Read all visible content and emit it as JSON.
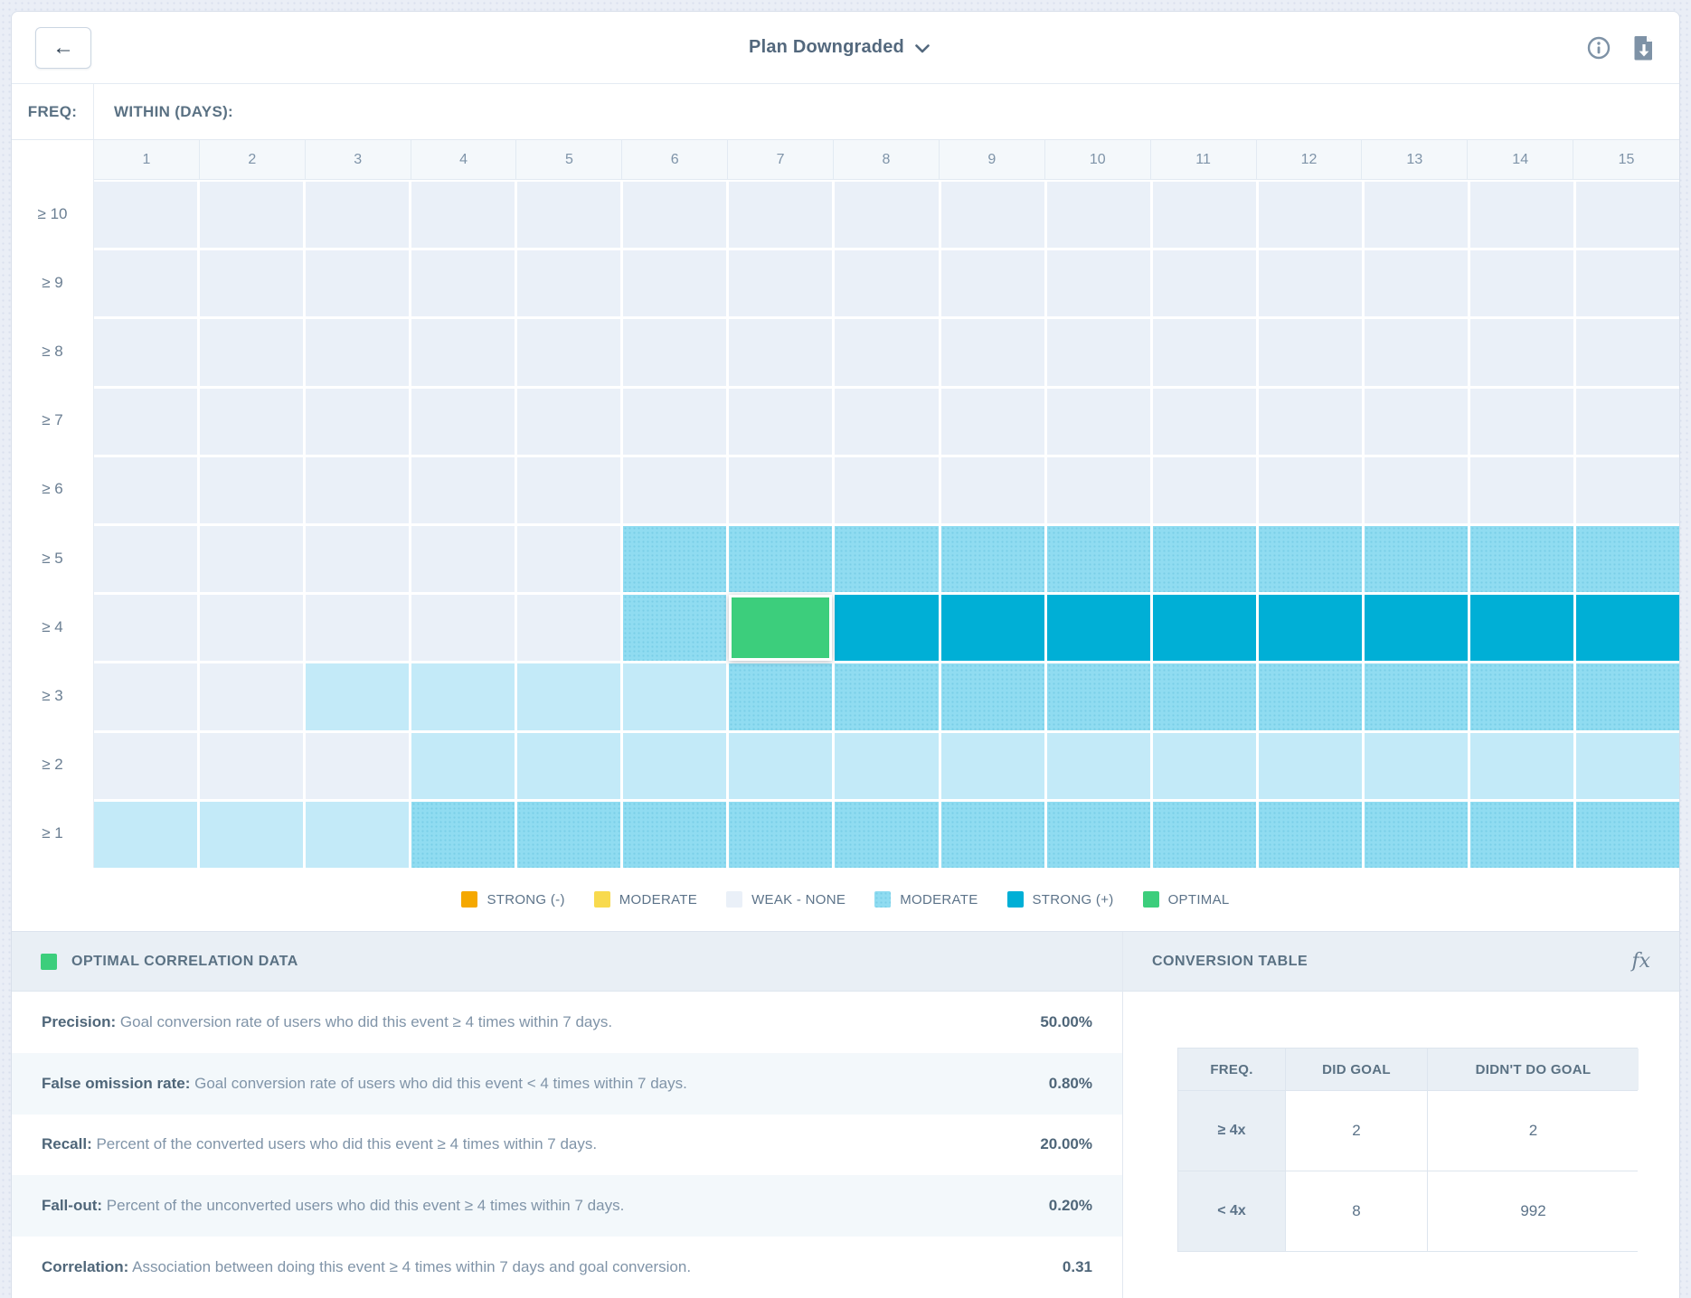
{
  "colors": {
    "strong_neg": "#F5A800",
    "moderate_yellow": "#F8DA4E",
    "weak": "#EAF0F8",
    "light": "#C3EAF8",
    "moderate": "#90DCF1",
    "strong": "#00AFD6",
    "optimal": "#3CCE7C"
  },
  "topbar": {
    "back_label": "←",
    "title": "Plan Downgraded",
    "chevron_icon": "chevron-down",
    "info_icon": "info",
    "download_icon": "download"
  },
  "heatmap": {
    "freq_label": "FREQ:",
    "within_label": "WITHIN (DAYS):",
    "columns": [
      "1",
      "2",
      "3",
      "4",
      "5",
      "6",
      "7",
      "8",
      "9",
      "10",
      "11",
      "12",
      "13",
      "14",
      "15"
    ],
    "rows": [
      {
        "label": "≥ 10",
        "cells": [
          "weak",
          "weak",
          "weak",
          "weak",
          "weak",
          "weak",
          "weak",
          "weak",
          "weak",
          "weak",
          "weak",
          "weak",
          "weak",
          "weak",
          "weak"
        ]
      },
      {
        "label": "≥ 9",
        "cells": [
          "weak",
          "weak",
          "weak",
          "weak",
          "weak",
          "weak",
          "weak",
          "weak",
          "weak",
          "weak",
          "weak",
          "weak",
          "weak",
          "weak",
          "weak"
        ]
      },
      {
        "label": "≥ 8",
        "cells": [
          "weak",
          "weak",
          "weak",
          "weak",
          "weak",
          "weak",
          "weak",
          "weak",
          "weak",
          "weak",
          "weak",
          "weak",
          "weak",
          "weak",
          "weak"
        ]
      },
      {
        "label": "≥ 7",
        "cells": [
          "weak",
          "weak",
          "weak",
          "weak",
          "weak",
          "weak",
          "weak",
          "weak",
          "weak",
          "weak",
          "weak",
          "weak",
          "weak",
          "weak",
          "weak"
        ]
      },
      {
        "label": "≥ 6",
        "cells": [
          "weak",
          "weak",
          "weak",
          "weak",
          "weak",
          "weak",
          "weak",
          "weak",
          "weak",
          "weak",
          "weak",
          "weak",
          "weak",
          "weak",
          "weak"
        ]
      },
      {
        "label": "≥ 5",
        "cells": [
          "weak",
          "weak",
          "weak",
          "weak",
          "weak",
          "moderate",
          "moderate",
          "moderate",
          "moderate",
          "moderate",
          "moderate",
          "moderate",
          "moderate",
          "moderate",
          "moderate"
        ]
      },
      {
        "label": "≥ 4",
        "cells": [
          "weak",
          "weak",
          "weak",
          "weak",
          "weak",
          "moderate",
          "optimal",
          "strong",
          "strong",
          "strong",
          "strong",
          "strong",
          "strong",
          "strong",
          "strong"
        ]
      },
      {
        "label": "≥ 3",
        "cells": [
          "weak",
          "weak",
          "light",
          "light",
          "light",
          "light",
          "moderate",
          "moderate",
          "moderate",
          "moderate",
          "moderate",
          "moderate",
          "moderate",
          "moderate",
          "moderate"
        ]
      },
      {
        "label": "≥ 2",
        "cells": [
          "weak",
          "weak",
          "weak",
          "light",
          "light",
          "light",
          "light",
          "light",
          "light",
          "light",
          "light",
          "light",
          "light",
          "light",
          "light"
        ]
      },
      {
        "label": "≥ 1",
        "cells": [
          "light",
          "light",
          "light",
          "moderate",
          "moderate",
          "moderate",
          "moderate",
          "moderate",
          "moderate",
          "moderate",
          "moderate",
          "moderate",
          "moderate",
          "moderate",
          "moderate"
        ]
      }
    ]
  },
  "legend": [
    {
      "label": "STRONG (-)",
      "color": "strong_neg",
      "textured": false
    },
    {
      "label": "MODERATE",
      "color": "moderate_yellow",
      "textured": false
    },
    {
      "label": "WEAK - NONE",
      "color": "weak",
      "textured": false
    },
    {
      "label": "MODERATE",
      "color": "moderate",
      "textured": true
    },
    {
      "label": "STRONG (+)",
      "color": "strong",
      "textured": false
    },
    {
      "label": "OPTIMAL",
      "color": "optimal",
      "textured": false
    }
  ],
  "optimal_panel": {
    "title": "OPTIMAL CORRELATION DATA",
    "metrics": [
      {
        "label": "Precision:",
        "description": "Goal conversion rate of users who did this event ≥ 4 times within 7 days.",
        "value": "50.00%"
      },
      {
        "label": "False omission rate:",
        "description": "Goal conversion rate of users who did this event < 4 times within 7 days.",
        "value": "0.80%"
      },
      {
        "label": "Recall:",
        "description": "Percent of the converted users who did this event ≥ 4 times within 7 days.",
        "value": "20.00%"
      },
      {
        "label": "Fall-out:",
        "description": "Percent of the unconverted users who did this event ≥ 4 times within 7 days.",
        "value": "0.20%"
      },
      {
        "label": "Correlation:",
        "description": "Association between doing this event ≥ 4 times within 7 days and goal conversion.",
        "value": "0.31"
      }
    ]
  },
  "conversion_panel": {
    "title": "CONVERSION TABLE",
    "fx_label": "fx",
    "table": {
      "headers": [
        "FREQ.",
        "DID GOAL",
        "DIDN'T DO GOAL"
      ],
      "rows": [
        {
          "freq": "≥ 4x",
          "values": [
            "2",
            "2"
          ]
        },
        {
          "freq": "< 4x",
          "values": [
            "8",
            "992"
          ]
        }
      ]
    }
  },
  "chart_data": {
    "type": "heatmap",
    "title": "Plan Downgraded",
    "x_label": "WITHIN (DAYS):",
    "y_label": "FREQ:",
    "x_categories": [
      "1",
      "2",
      "3",
      "4",
      "5",
      "6",
      "7",
      "8",
      "9",
      "10",
      "11",
      "12",
      "13",
      "14",
      "15"
    ],
    "y_categories": [
      "≥ 10",
      "≥ 9",
      "≥ 8",
      "≥ 7",
      "≥ 6",
      "≥ 5",
      "≥ 4",
      "≥ 3",
      "≥ 2",
      "≥ 1"
    ],
    "value_scale": [
      "strong_negative",
      "moderate_negative",
      "weak_none",
      "moderate_positive",
      "strong_positive",
      "optimal"
    ],
    "optimal_cell": {
      "freq": "≥ 4",
      "day": "7"
    },
    "legend_position": "bottom"
  }
}
